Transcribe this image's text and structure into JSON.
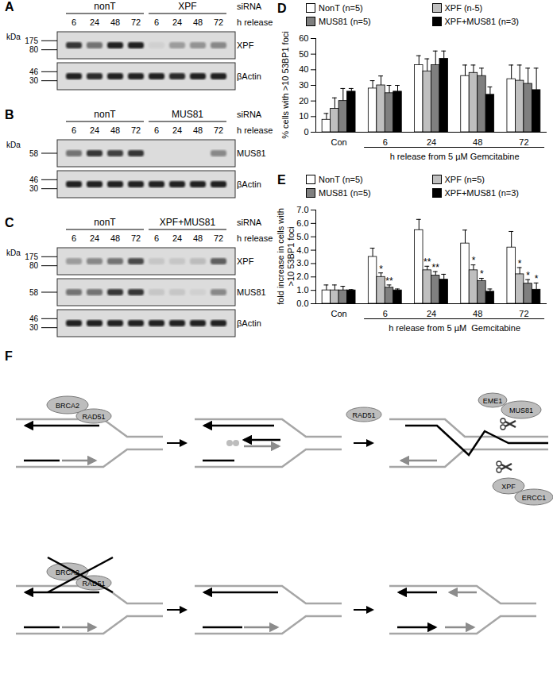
{
  "panels": {
    "A": {
      "panel_label": "A",
      "sirna_label": "siRNA",
      "time_label": "h release",
      "kda_label": "kDa",
      "groups": [
        {
          "name": "nonT",
          "times": [
            6,
            24,
            48,
            72
          ]
        },
        {
          "name": "XPF",
          "times": [
            6,
            24,
            48,
            72
          ]
        }
      ],
      "blots": [
        {
          "protein": "XPF",
          "markers": [
            175,
            80
          ],
          "band_intensity": [
            0.8,
            0.5,
            0.9,
            0.9,
            0.05,
            0.3,
            0.35,
            0.4
          ]
        },
        {
          "protein": "βActin",
          "markers": [
            46,
            30
          ],
          "band_intensity": [
            0.9,
            0.85,
            0.9,
            0.9,
            0.9,
            0.85,
            0.9,
            0.9
          ]
        }
      ]
    },
    "B": {
      "panel_label": "B",
      "sirna_label": "siRNA",
      "time_label": "h release",
      "kda_label": "kDa",
      "groups": [
        {
          "name": "nonT",
          "times": [
            6,
            24,
            48,
            72
          ]
        },
        {
          "name": "MUS81",
          "times": [
            6,
            24,
            48,
            72
          ]
        }
      ],
      "blots": [
        {
          "protein": "MUS81",
          "markers": [
            58
          ],
          "band_intensity": [
            0.5,
            0.8,
            0.75,
            0.8,
            0,
            0,
            0,
            0.4
          ]
        },
        {
          "protein": "βActin",
          "markers": [
            46,
            30
          ],
          "band_intensity": [
            0.9,
            0.9,
            0.9,
            0.9,
            0.9,
            0.9,
            0.9,
            0.9
          ]
        }
      ]
    },
    "C": {
      "panel_label": "C",
      "sirna_label": "siRNA",
      "time_label": "h release",
      "kda_label": "kDa",
      "groups": [
        {
          "name": "nonT",
          "times": [
            6,
            24,
            48,
            72
          ]
        },
        {
          "name": "XPF+MUS81",
          "times": [
            6,
            24,
            48,
            72
          ]
        }
      ],
      "blots": [
        {
          "protein": "XPF",
          "markers": [
            175,
            80
          ],
          "band_intensity": [
            0.3,
            0.4,
            0.5,
            0.7,
            0.1,
            0.1,
            0.15,
            0.6
          ]
        },
        {
          "protein": "MUS81",
          "markers": [
            58
          ],
          "band_intensity": [
            0.5,
            0.5,
            0.8,
            0.8,
            0.1,
            0.1,
            0.05,
            0.4
          ]
        },
        {
          "protein": "βActin",
          "markers": [
            46,
            30
          ],
          "band_intensity": [
            0.9,
            0.9,
            0.9,
            0.9,
            0.9,
            0.9,
            0.9,
            0.9
          ]
        }
      ]
    },
    "F": {
      "panel_label": "F",
      "top": {
        "step1": [
          "BRCA2",
          "RAD51"
        ],
        "step2": "RAD51",
        "step3": {
          "nuclease1": [
            "EME1",
            "MUS81"
          ],
          "nuclease2": [
            "XPF",
            "ERCC1"
          ]
        }
      },
      "bottom": {
        "crossed": [
          "BRCA2",
          "RAD51"
        ]
      }
    }
  },
  "chart_data": [
    {
      "type": "bar",
      "panel_label": "D",
      "ylabel": "% cells with >10 53BP1 foci",
      "xlabel": "h release from 5 µM Gemcitabine",
      "categories": [
        "Con",
        "6",
        "24",
        "48",
        "72"
      ],
      "series": [
        {
          "name": "NonT (n=5)",
          "color": "#ffffff",
          "values": [
            8,
            28,
            43,
            36,
            34
          ],
          "errors": [
            4,
            5,
            6,
            7,
            9
          ]
        },
        {
          "name": "XPF (n-5)",
          "color": "#bfbfbf",
          "values": [
            15,
            30,
            39,
            38,
            33
          ],
          "errors": [
            7,
            6,
            8,
            5,
            10
          ]
        },
        {
          "name": "MUS81 (n=5)",
          "color": "#7f7f7f",
          "values": [
            20,
            25,
            43,
            36,
            31
          ],
          "errors": [
            8,
            5,
            9,
            5,
            10
          ]
        },
        {
          "name": "XPF+MUS81 (n=3)",
          "color": "#000000",
          "values": [
            26,
            26,
            47,
            24,
            27
          ],
          "errors": [
            2,
            4,
            5,
            5,
            14
          ]
        }
      ],
      "ylim": [
        0,
        60
      ],
      "yticks": [
        0,
        10,
        20,
        30,
        40,
        50,
        60
      ],
      "legend": "top"
    },
    {
      "type": "bar",
      "panel_label": "E",
      "ylabel": "fold increase in cells with >10 53BP1 foci",
      "xlabel": "h release from 5 µM  Gemcitabine",
      "categories": [
        "Con",
        "6",
        "24",
        "48",
        "72"
      ],
      "series": [
        {
          "name": "NonT (n=5)",
          "color": "#ffffff",
          "values": [
            1,
            3.5,
            5.5,
            4.5,
            4.2
          ],
          "errors": [
            0.4,
            0.65,
            0.8,
            1.0,
            1.2
          ]
        },
        {
          "name": "XPF (n=5)",
          "color": "#bfbfbf",
          "values": [
            1,
            2.0,
            2.5,
            2.5,
            2.2
          ],
          "errors": [
            0.4,
            0.3,
            0.3,
            0.4,
            0.5
          ],
          "annotations": [
            null,
            "*",
            "**",
            "*",
            "*"
          ]
        },
        {
          "name": "MUS81 (n=5)",
          "color": "#7f7f7f",
          "values": [
            1,
            1.2,
            2.1,
            1.7,
            1.5
          ],
          "errors": [
            0.3,
            0.2,
            0.3,
            0.2,
            0.3
          ],
          "annotations": [
            null,
            "**",
            "**",
            "*",
            "*"
          ]
        },
        {
          "name": "XPF+MUS81 (n=3)",
          "color": "#000000",
          "values": [
            1,
            1.0,
            1.8,
            0.9,
            1.05
          ],
          "errors": [
            0.05,
            0.1,
            0.4,
            0.2,
            0.5
          ],
          "annotations": [
            null,
            null,
            null,
            null,
            "*"
          ]
        }
      ],
      "ylim": [
        0,
        7
      ],
      "yticks": [
        0,
        1,
        2,
        3,
        4,
        5,
        6,
        7
      ],
      "legend": "top"
    }
  ]
}
